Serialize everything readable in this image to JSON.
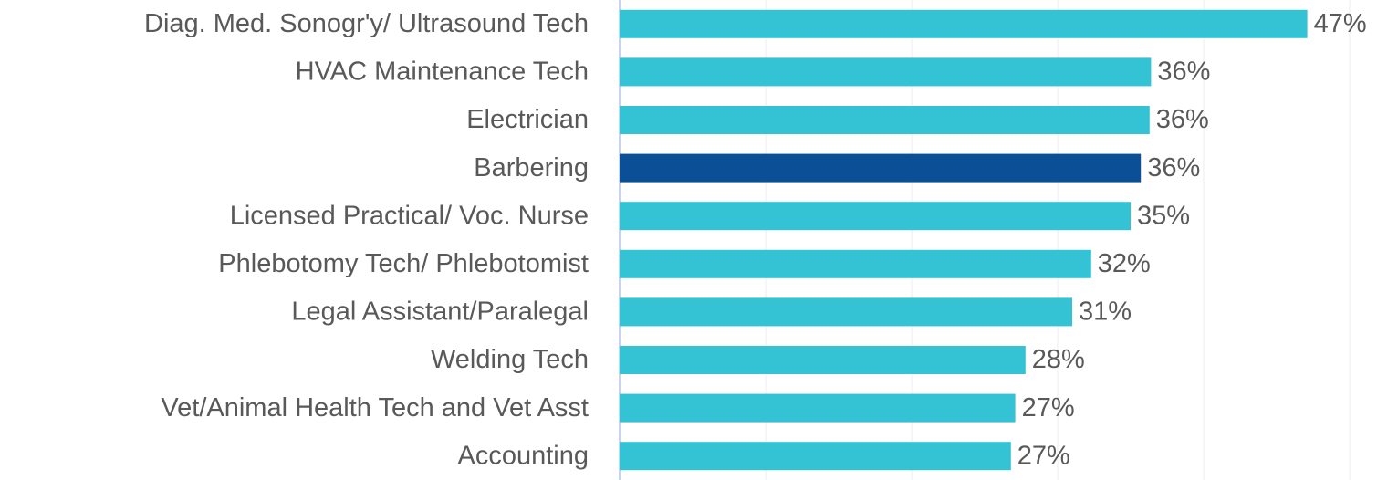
{
  "chart_data": {
    "type": "hbar",
    "categories": [
      "Diag. Med. Sonogr'y/ Ultrasound Tech",
      "HVAC Maintenance Tech",
      "Electrician",
      "Barbering",
      "Licensed Practical/ Voc. Nurse",
      "Phlebotomy Tech/ Phlebotomist",
      "Legal Assistant/Paralegal",
      "Welding Tech",
      "Vet/Animal Health Tech and Vet Asst",
      "Accounting"
    ],
    "values": [
      47.1,
      36.4,
      36.3,
      35.7,
      35.0,
      32.3,
      31.0,
      27.8,
      27.1,
      26.8
    ],
    "value_labels": [
      "47%",
      "36%",
      "36%",
      "36%",
      "35%",
      "32%",
      "31%",
      "28%",
      "27%",
      "27%"
    ],
    "colors": [
      "#33c3d4",
      "#33c3d4",
      "#33c3d4",
      "#0b4f96",
      "#33c3d4",
      "#33c3d4",
      "#33c3d4",
      "#33c3d4",
      "#33c3d4",
      "#33c3d4"
    ],
    "xlim": [
      0,
      50
    ],
    "xticks": [
      0,
      10,
      20,
      30,
      40,
      50
    ],
    "grid": true
  }
}
